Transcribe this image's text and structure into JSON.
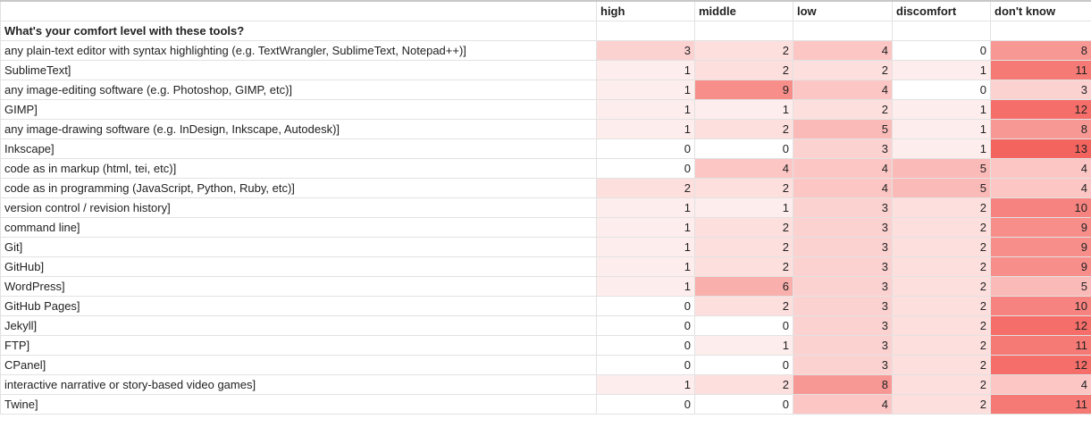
{
  "columns": [
    "high",
    "middle",
    "low",
    "discomfort",
    "don't know"
  ],
  "section_title": "What's your comfort level with these tools?",
  "rows": [
    {
      "label": "any plain-text editor with syntax highlighting (e.g. TextWrangler, SublimeText, Notepad++)]",
      "values": [
        3,
        2,
        4,
        0,
        8
      ]
    },
    {
      "label": "SublimeText]",
      "values": [
        1,
        2,
        2,
        1,
        11
      ]
    },
    {
      "label": "any image-editing software (e.g. Photoshop, GIMP, etc)]",
      "values": [
        1,
        9,
        4,
        0,
        3
      ]
    },
    {
      "label": "GIMP]",
      "values": [
        1,
        1,
        2,
        1,
        12
      ]
    },
    {
      "label": "any image-drawing software (e.g. InDesign, Inkscape, Autodesk)]",
      "values": [
        1,
        2,
        5,
        1,
        8
      ]
    },
    {
      "label": "Inkscape]",
      "values": [
        0,
        0,
        3,
        1,
        13
      ]
    },
    {
      "label": "code as in markup (html, tei, etc)]",
      "values": [
        0,
        4,
        4,
        5,
        4
      ]
    },
    {
      "label": "code as in programming (JavaScript, Python, Ruby, etc)]",
      "values": [
        2,
        2,
        4,
        5,
        4
      ]
    },
    {
      "label": "version control / revision history]",
      "values": [
        1,
        1,
        3,
        2,
        10
      ]
    },
    {
      "label": "command line]",
      "values": [
        1,
        2,
        3,
        2,
        9
      ]
    },
    {
      "label": "Git]",
      "values": [
        1,
        2,
        3,
        2,
        9
      ]
    },
    {
      "label": "GitHub]",
      "values": [
        1,
        2,
        3,
        2,
        9
      ]
    },
    {
      "label": "WordPress]",
      "values": [
        1,
        6,
        3,
        2,
        5
      ]
    },
    {
      "label": "GitHub Pages]",
      "values": [
        0,
        2,
        3,
        2,
        10
      ]
    },
    {
      "label": "Jekyll]",
      "values": [
        0,
        0,
        3,
        2,
        12
      ]
    },
    {
      "label": "FTP]",
      "values": [
        0,
        1,
        3,
        2,
        11
      ]
    },
    {
      "label": "CPanel]",
      "values": [
        0,
        0,
        3,
        2,
        12
      ]
    },
    {
      "label": "interactive narrative or story-based video games]",
      "values": [
        1,
        2,
        8,
        2,
        4
      ]
    },
    {
      "label": "Twine]",
      "values": [
        0,
        0,
        4,
        2,
        11
      ]
    }
  ],
  "heat_colors": {
    "low": "#ffffff",
    "high": "#f4645f"
  }
}
